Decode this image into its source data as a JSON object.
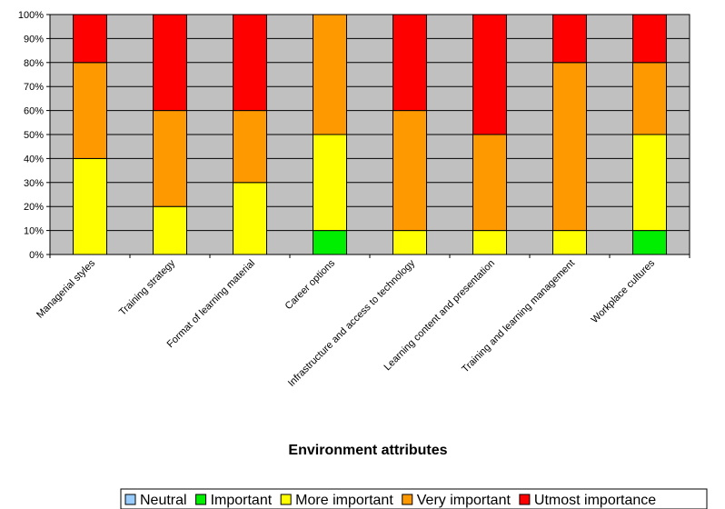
{
  "chart_data": {
    "type": "bar",
    "stacked": true,
    "percent": true,
    "categories": [
      "Managerial styles",
      "Training strategy",
      "Format of learning material",
      "Career options",
      "Infrastructure and access to technology",
      "Learning content and presentation",
      "Training and learning management",
      "Workplace cultures"
    ],
    "series": [
      {
        "name": "Neutral",
        "color": "#99ccff",
        "values": [
          0,
          0,
          0,
          0,
          0,
          0,
          0,
          0
        ]
      },
      {
        "name": "Important",
        "color": "#00ee00",
        "values": [
          0,
          0,
          0,
          10,
          0,
          0,
          0,
          10
        ]
      },
      {
        "name": "More important",
        "color": "#ffff00",
        "values": [
          40,
          20,
          30,
          40,
          10,
          10,
          10,
          40
        ]
      },
      {
        "name": "Very important",
        "color": "#ff9900",
        "values": [
          40,
          40,
          30,
          50,
          50,
          40,
          70,
          30
        ]
      },
      {
        "name": "Utmost importance",
        "color": "#ff0000",
        "values": [
          20,
          40,
          40,
          0,
          40,
          50,
          20,
          20
        ]
      }
    ],
    "xlabel": "Environment attributes",
    "ylabel": "",
    "ylim": [
      0,
      100
    ],
    "yticks": [
      "0%",
      "10%",
      "20%",
      "30%",
      "40%",
      "50%",
      "60%",
      "70%",
      "80%",
      "90%",
      "100%"
    ],
    "grid": true,
    "plot_background": "#c0c0c0",
    "legend": "bottom"
  }
}
